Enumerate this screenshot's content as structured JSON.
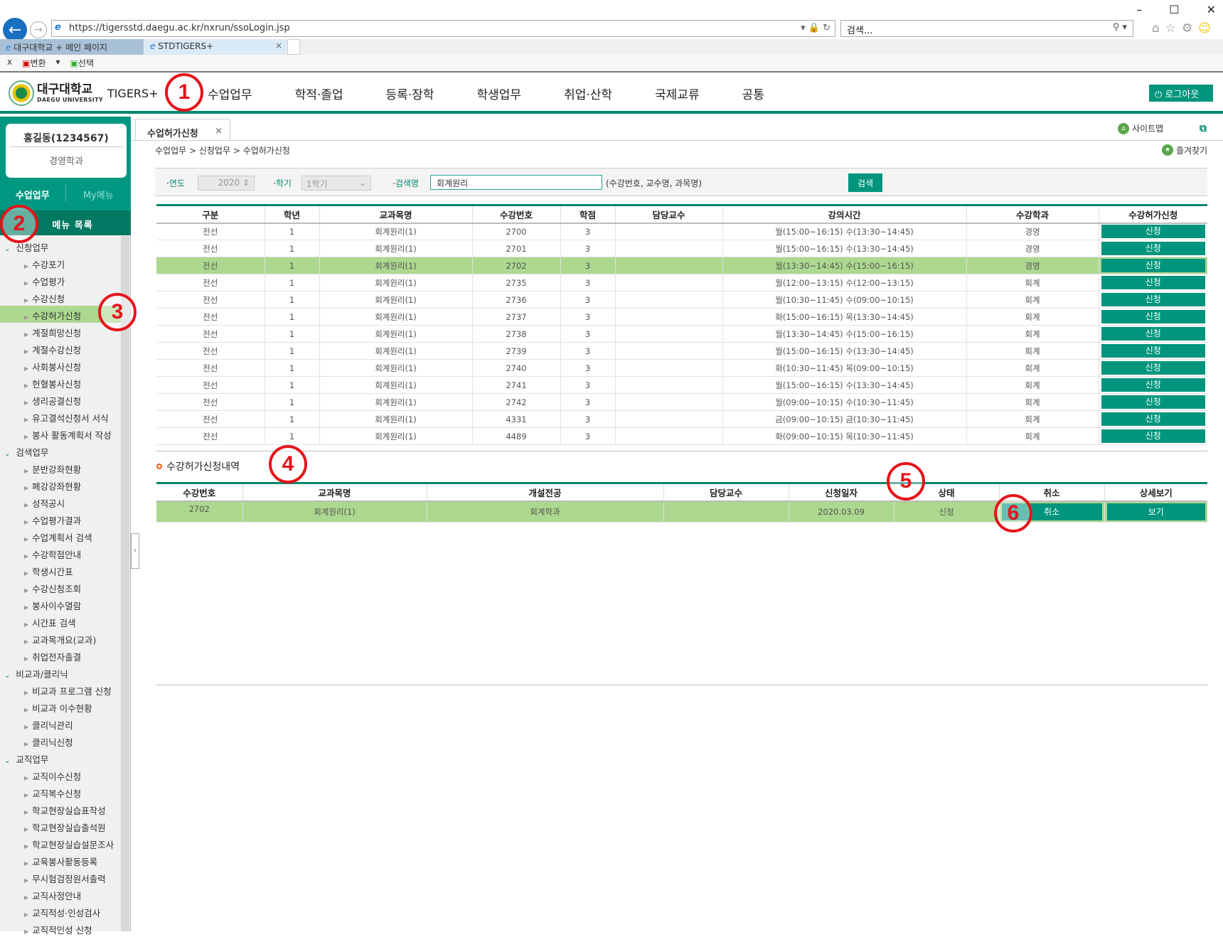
{
  "browser": {
    "url": "https://tigersstd.daegu.ac.kr/nxrun/ssoLogin.jsp",
    "search_placeholder": "검색...",
    "tabs": [
      "대구대학교 + 메인 페이지",
      "STDTIGERS+"
    ],
    "cmd": [
      "x",
      "변환",
      "▾",
      "선택"
    ]
  },
  "header": {
    "logo_kr": "대구대학교",
    "logo_en": "DAEGU UNIVERSITY",
    "logo_brand": "TIGERS+",
    "nav": [
      "수업업무",
      "학적·졸업",
      "등록·장학",
      "학생업무",
      "취업·산학",
      "국제교류",
      "공통"
    ],
    "logout": "로그아웃"
  },
  "sidebar": {
    "user": "홍길동(1234567)",
    "dept": "경영학과",
    "tabs": [
      "수업업무",
      "My메뉴"
    ],
    "menu_title": "메뉴 목록",
    "groups": [
      {
        "label": "신청업무",
        "items": [
          "수강포기",
          "수업평가",
          "수강신청",
          "수강허가신청",
          "계절희망신청",
          "계절수강신청",
          "사회봉사신청",
          "헌혈봉사신청",
          "생리공결신청",
          "유고결석신청서 서식",
          "봉사 활동계획서 작성"
        ]
      },
      {
        "label": "검색업무",
        "items": [
          "분반강좌현황",
          "폐강강좌현황",
          "성적공시",
          "수업평가결과",
          "수업계획서 검색",
          "수강학점안내",
          "학생시간표",
          "수강신청조회",
          "봉사이수열람",
          "시간표 검색",
          "교과목개요(교과)",
          "취업전자출결"
        ]
      },
      {
        "label": "비교과/클리닉",
        "items": [
          "비교과 프로그램 신청",
          "비교과 이수현황",
          "클리닉관리",
          "클리닉신청"
        ]
      },
      {
        "label": "교직업무",
        "items": [
          "교직이수신청",
          "교직복수신청",
          "학교현장실습표작성",
          "학교현장실습출석원",
          "학교현장실습설문조사",
          "교육봉사활동등록",
          "무시험검정원서출력",
          "교직사정안내",
          "교직적성·인성검사",
          "교직적인성 신청"
        ]
      }
    ],
    "selected": "수강허가신청"
  },
  "page": {
    "tab": "수업허가신청",
    "breadcrumb": "수업업무 > 신청업무 > 수업허가신청",
    "sitemap": "사이트맵",
    "favorites": "즐겨찾기"
  },
  "search": {
    "year_label": "연도",
    "year": "2020",
    "term_label": "학기",
    "term": "1학기",
    "query_label": "검색명",
    "query": "회계원리",
    "hint": "(수강번호, 교수명, 과목명)",
    "button": "검색"
  },
  "courses": {
    "headers": [
      "구분",
      "학년",
      "교과목명",
      "수강번호",
      "학점",
      "담당교수",
      "강의시간",
      "수강학과",
      "수강허가신청"
    ],
    "apply_label": "신청",
    "rows": [
      [
        "전선",
        "1",
        "회계원리(1)",
        "2700",
        "3",
        "",
        "월(15:00~16:15) 수(13:30~14:45)",
        "경영"
      ],
      [
        "전선",
        "1",
        "회계원리(1)",
        "2701",
        "3",
        "",
        "월(15:00~16:15) 수(13:30~14:45)",
        "경영"
      ],
      [
        "전선",
        "1",
        "회계원리(1)",
        "2702",
        "3",
        "",
        "월(13:30~14:45) 수(15:00~16:15)",
        "경영"
      ],
      [
        "전선",
        "1",
        "회계원리(1)",
        "2735",
        "3",
        "",
        "월(12:00~13:15) 수(12:00~13:15)",
        "회계"
      ],
      [
        "전선",
        "1",
        "회계원리(1)",
        "2736",
        "3",
        "",
        "월(10:30~11:45) 수(09:00~10:15)",
        "회계"
      ],
      [
        "전선",
        "1",
        "회계원리(1)",
        "2737",
        "3",
        "",
        "화(15:00~16:15) 목(13:30~14:45)",
        "회계"
      ],
      [
        "전선",
        "1",
        "회계원리(1)",
        "2738",
        "3",
        "",
        "월(13:30~14:45) 수(15:00~16:15)",
        "회계"
      ],
      [
        "전선",
        "1",
        "회계원리(1)",
        "2739",
        "3",
        "",
        "월(15:00~16:15) 수(13:30~14:45)",
        "회계"
      ],
      [
        "전선",
        "1",
        "회계원리(1)",
        "2740",
        "3",
        "",
        "화(10:30~11:45) 목(09:00~10:15)",
        "회계"
      ],
      [
        "전선",
        "1",
        "회계원리(1)",
        "2741",
        "3",
        "",
        "월(15:00~16:15) 수(13:30~14:45)",
        "회계"
      ],
      [
        "전선",
        "1",
        "회계원리(1)",
        "2742",
        "3",
        "",
        "월(09:00~10:15) 수(10:30~11:45)",
        "회계"
      ],
      [
        "전선",
        "1",
        "회계원리(1)",
        "4331",
        "3",
        "",
        "금(09:00~10:15) 금(10:30~11:45)",
        "회계"
      ],
      [
        "전선",
        "1",
        "회계원리(1)",
        "4489",
        "3",
        "",
        "화(09:00~10:15) 목(10:30~11:45)",
        "회계"
      ]
    ],
    "highlighted_row": 2
  },
  "history": {
    "title": "수강허가신청내역",
    "headers": [
      "수강번호",
      "교과목명",
      "개설전공",
      "담당교수",
      "신청일자",
      "상태",
      "취소",
      "상세보기"
    ],
    "rows": [
      {
        "code": "2702",
        "name": "회계원리(1)",
        "major": "회계학과",
        "prof": "",
        "date": "2020.03.09",
        "status": "신청",
        "cancel": "취소",
        "detail": "보기"
      }
    ]
  },
  "annotations": [
    "1",
    "2",
    "3",
    "4",
    "5",
    "6"
  ],
  "colors": {
    "brand": "#00957c",
    "highlight": "#acd88f",
    "annotation": "#e5141b"
  }
}
